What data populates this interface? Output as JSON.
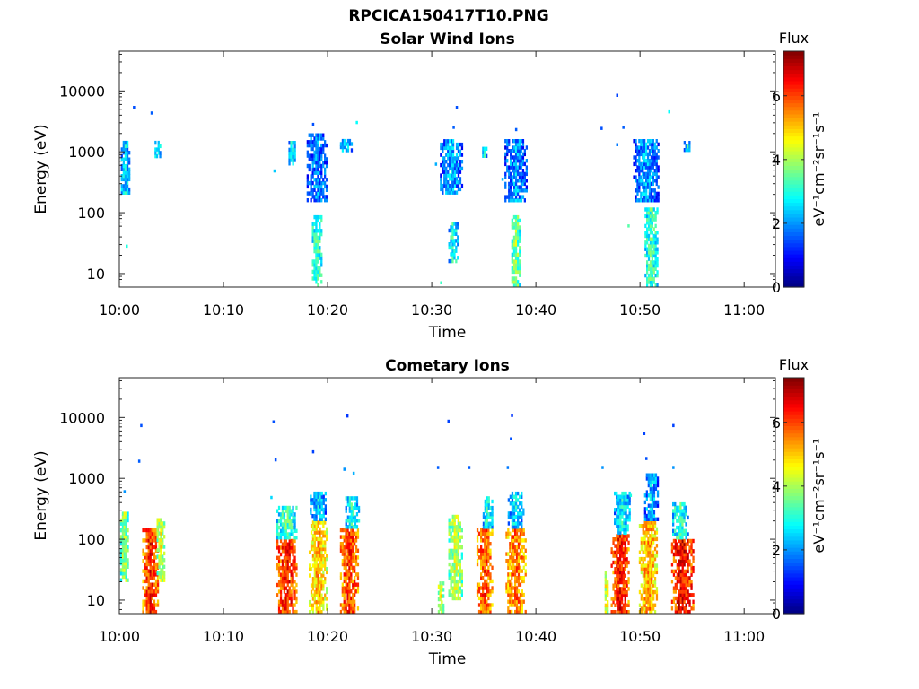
{
  "figure": {
    "filename": "RPCICA150417T10.PNG"
  },
  "chart_data": [
    {
      "type": "heatmap",
      "title": "Solar Wind Ions",
      "xlabel": "Time",
      "ylabel": "Energy (eV)",
      "x_ticks": [
        "10:00",
        "10:10",
        "10:20",
        "10:30",
        "10:40",
        "10:50",
        "11:00"
      ],
      "x_range": [
        "10:00",
        "11:03"
      ],
      "y_scale": "log",
      "y_ticks": [
        10,
        100,
        1000,
        10000
      ],
      "y_tick_labels": [
        "10",
        "100",
        "1000",
        "10000"
      ],
      "y_range": [
        6,
        45000
      ],
      "colorbar": {
        "label": "Flux",
        "units": "eV⁻¹cm⁻²sr⁻¹s⁻¹",
        "range": [
          0,
          7.4
        ],
        "ticks": [
          0,
          2,
          4,
          6
        ],
        "colormap": "jet"
      },
      "bursts": [
        {
          "t": 0.5,
          "w": 0.9,
          "e_lo": 200,
          "e_hi": 1500,
          "flux": 2.6
        },
        {
          "t": 3.6,
          "w": 0.6,
          "e_lo": 700,
          "e_hi": 1500,
          "flux": 2.8
        },
        {
          "t": 16.5,
          "w": 0.7,
          "e_lo": 600,
          "e_hi": 1500,
          "flux": 2.8
        },
        {
          "t": 18.9,
          "w": 2.0,
          "e_lo": 150,
          "e_hi": 2000,
          "flux": 2.0
        },
        {
          "t": 18.9,
          "w": 1.0,
          "e_lo": 6,
          "e_hi": 90,
          "flux": 3.4
        },
        {
          "t": 21.7,
          "w": 1.2,
          "e_lo": 1000,
          "e_hi": 1600,
          "flux": 2.7
        },
        {
          "t": 31.8,
          "w": 2.2,
          "e_lo": 200,
          "e_hi": 1600,
          "flux": 2.3
        },
        {
          "t": 32.0,
          "w": 1.0,
          "e_lo": 15,
          "e_hi": 70,
          "flux": 3.0
        },
        {
          "t": 35.0,
          "w": 0.5,
          "e_lo": 800,
          "e_hi": 1200,
          "flux": 2.8
        },
        {
          "t": 38.0,
          "w": 2.2,
          "e_lo": 150,
          "e_hi": 1600,
          "flux": 2.1
        },
        {
          "t": 38.0,
          "w": 0.9,
          "e_lo": 6,
          "e_hi": 90,
          "flux": 3.8
        },
        {
          "t": 50.5,
          "w": 2.5,
          "e_lo": 150,
          "e_hi": 1600,
          "flux": 2.2
        },
        {
          "t": 51.0,
          "w": 1.3,
          "e_lo": 6,
          "e_hi": 120,
          "flux": 3.3
        },
        {
          "t": 54.5,
          "w": 0.8,
          "e_lo": 1000,
          "e_hi": 1500,
          "flux": 2.8
        }
      ],
      "scatter": [
        {
          "t": 1.3,
          "e": 5300,
          "flux": 1.5
        },
        {
          "t": 3.0,
          "e": 4300,
          "flux": 1.6
        },
        {
          "t": 0.6,
          "e": 28,
          "flux": 3.0
        },
        {
          "t": 14.8,
          "e": 480,
          "flux": 2.4
        },
        {
          "t": 18.5,
          "e": 2800,
          "flux": 1.5
        },
        {
          "t": 22.7,
          "e": 3000,
          "flux": 2.8
        },
        {
          "t": 30.3,
          "e": 620,
          "flux": 2.2
        },
        {
          "t": 32.3,
          "e": 5300,
          "flux": 1.5
        },
        {
          "t": 32.0,
          "e": 2500,
          "flux": 1.6
        },
        {
          "t": 30.8,
          "e": 7,
          "flux": 3.2
        },
        {
          "t": 36.7,
          "e": 350,
          "flux": 2.3
        },
        {
          "t": 38.0,
          "e": 2300,
          "flux": 1.6
        },
        {
          "t": 46.2,
          "e": 2400,
          "flux": 1.5
        },
        {
          "t": 47.7,
          "e": 8400,
          "flux": 1.4
        },
        {
          "t": 48.3,
          "e": 2500,
          "flux": 1.6
        },
        {
          "t": 52.7,
          "e": 4500,
          "flux": 2.8
        },
        {
          "t": 48.8,
          "e": 60,
          "flux": 3.4
        },
        {
          "t": 47.7,
          "e": 1300,
          "flux": 1.8
        }
      ]
    },
    {
      "type": "heatmap",
      "title": "Cometary Ions",
      "xlabel": "Time",
      "ylabel": "Energy (eV)",
      "x_ticks": [
        "10:00",
        "10:10",
        "10:20",
        "10:30",
        "10:40",
        "10:50",
        "11:00"
      ],
      "x_range": [
        "10:00",
        "11:03"
      ],
      "y_scale": "log",
      "y_ticks": [
        10,
        100,
        1000,
        10000
      ],
      "y_tick_labels": [
        "10",
        "100",
        "1000",
        "10000"
      ],
      "y_range": [
        6,
        45000
      ],
      "colorbar": {
        "label": "Flux",
        "units": "eV⁻¹cm⁻²sr⁻¹s⁻¹",
        "range": [
          0,
          7.4
        ],
        "ticks": [
          0,
          2,
          4,
          6
        ],
        "colormap": "jet"
      },
      "bursts": [
        {
          "t": 0.4,
          "w": 0.8,
          "e_lo": 20,
          "e_hi": 280,
          "flux": 4.0
        },
        {
          "t": 2.9,
          "w": 1.6,
          "e_lo": 6,
          "e_hi": 150,
          "flux": 6.3
        },
        {
          "t": 3.9,
          "w": 0.8,
          "e_lo": 20,
          "e_hi": 220,
          "flux": 4.4
        },
        {
          "t": 16.0,
          "w": 2.0,
          "e_lo": 6,
          "e_hi": 100,
          "flux": 6.4
        },
        {
          "t": 16.0,
          "w": 2.0,
          "e_lo": 100,
          "e_hi": 350,
          "flux": 3.4
        },
        {
          "t": 19.0,
          "w": 1.8,
          "e_lo": 6,
          "e_hi": 200,
          "flux": 5.2
        },
        {
          "t": 19.0,
          "w": 1.6,
          "e_lo": 200,
          "e_hi": 600,
          "flux": 2.5
        },
        {
          "t": 22.0,
          "w": 1.8,
          "e_lo": 6,
          "e_hi": 150,
          "flux": 6.2
        },
        {
          "t": 22.3,
          "w": 1.4,
          "e_lo": 150,
          "e_hi": 500,
          "flux": 3.0
        },
        {
          "t": 30.8,
          "w": 0.6,
          "e_lo": 6,
          "e_hi": 20,
          "flux": 4.6
        },
        {
          "t": 32.2,
          "w": 1.4,
          "e_lo": 10,
          "e_hi": 250,
          "flux": 4.2
        },
        {
          "t": 35.0,
          "w": 1.6,
          "e_lo": 6,
          "e_hi": 150,
          "flux": 6.0
        },
        {
          "t": 35.3,
          "w": 1.0,
          "e_lo": 150,
          "e_hi": 500,
          "flux": 3.0
        },
        {
          "t": 38.0,
          "w": 2.0,
          "e_lo": 6,
          "e_hi": 150,
          "flux": 5.8
        },
        {
          "t": 38.0,
          "w": 1.6,
          "e_lo": 150,
          "e_hi": 600,
          "flux": 2.6
        },
        {
          "t": 46.7,
          "w": 0.4,
          "e_lo": 6,
          "e_hi": 30,
          "flux": 4.6
        },
        {
          "t": 48.0,
          "w": 1.8,
          "e_lo": 6,
          "e_hi": 120,
          "flux": 6.4
        },
        {
          "t": 48.2,
          "w": 1.6,
          "e_lo": 120,
          "e_hi": 600,
          "flux": 2.8
        },
        {
          "t": 50.7,
          "w": 1.8,
          "e_lo": 6,
          "e_hi": 200,
          "flux": 5.4
        },
        {
          "t": 51.0,
          "w": 1.4,
          "e_lo": 200,
          "e_hi": 1200,
          "flux": 2.4
        },
        {
          "t": 54.0,
          "w": 2.2,
          "e_lo": 6,
          "e_hi": 100,
          "flux": 6.6
        },
        {
          "t": 53.8,
          "w": 1.6,
          "e_lo": 100,
          "e_hi": 400,
          "flux": 3.2
        }
      ],
      "scatter": [
        {
          "t": 2.0,
          "e": 7300,
          "flux": 1.5
        },
        {
          "t": 1.8,
          "e": 1900,
          "flux": 1.6
        },
        {
          "t": 0.4,
          "e": 600,
          "flux": 2.0
        },
        {
          "t": 14.7,
          "e": 8400,
          "flux": 1.5
        },
        {
          "t": 14.9,
          "e": 2000,
          "flux": 1.5
        },
        {
          "t": 18.5,
          "e": 2700,
          "flux": 1.4
        },
        {
          "t": 21.5,
          "e": 1400,
          "flux": 2.0
        },
        {
          "t": 21.8,
          "e": 10500,
          "flux": 1.3
        },
        {
          "t": 22.4,
          "e": 1200,
          "flux": 2.2
        },
        {
          "t": 14.5,
          "e": 480,
          "flux": 2.5
        },
        {
          "t": 31.5,
          "e": 8600,
          "flux": 1.4
        },
        {
          "t": 30.5,
          "e": 1500,
          "flux": 1.6
        },
        {
          "t": 33.5,
          "e": 1500,
          "flux": 1.6
        },
        {
          "t": 37.6,
          "e": 10700,
          "flux": 1.3
        },
        {
          "t": 37.5,
          "e": 4400,
          "flux": 1.5
        },
        {
          "t": 37.2,
          "e": 1500,
          "flux": 1.8
        },
        {
          "t": 46.3,
          "e": 1500,
          "flux": 2.0
        },
        {
          "t": 50.3,
          "e": 5400,
          "flux": 1.4
        },
        {
          "t": 50.5,
          "e": 2100,
          "flux": 1.5
        },
        {
          "t": 53.1,
          "e": 7300,
          "flux": 1.4
        },
        {
          "t": 53.1,
          "e": 1500,
          "flux": 2.0
        },
        {
          "t": 49.0,
          "e": 520,
          "flux": 3.0
        }
      ]
    }
  ]
}
